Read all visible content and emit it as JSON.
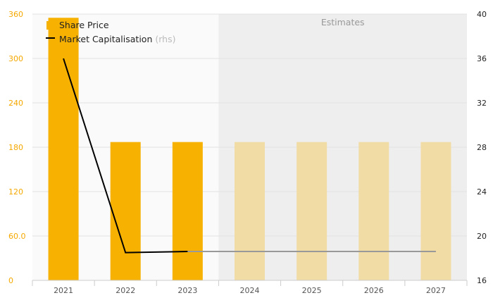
{
  "chart_data": {
    "type": "bar",
    "categories": [
      "2021",
      "2022",
      "2023",
      "2024",
      "2025",
      "2026",
      "2027"
    ],
    "series": [
      {
        "name": "Share Price",
        "type": "bar",
        "axis": "left",
        "values": [
          355,
          187,
          187,
          187,
          187,
          187,
          187
        ],
        "estimate_from_index": 3,
        "color": "#f7b100",
        "estimate_color": "#f2dca5"
      },
      {
        "name": "Market Capitalisation",
        "name_suffix": "(rhs)",
        "type": "line",
        "axis": "right",
        "values": [
          36,
          18.5,
          18.6,
          18.6,
          18.6,
          18.6,
          18.6
        ],
        "estimate_from_index": 2,
        "color": "#000000",
        "estimate_color": "#999999"
      }
    ],
    "y_left": {
      "min": 0,
      "max": 360,
      "ticks": [
        "0",
        "60.0",
        "120",
        "180",
        "240",
        "300",
        "360"
      ]
    },
    "y_right": {
      "min": 16,
      "max": 40,
      "ticks": [
        "16",
        "20",
        "24",
        "28",
        "32",
        "36",
        "40"
      ]
    },
    "estimates_label": "Estimates",
    "estimates_from_index": 3,
    "legend_position": "top-left",
    "grid": true,
    "title": "",
    "xlabel": "",
    "ylabel": ""
  }
}
